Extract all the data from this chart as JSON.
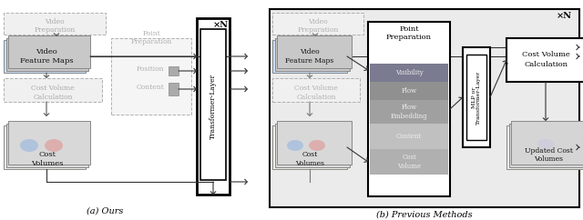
{
  "fig_width": 6.4,
  "fig_height": 2.42,
  "dpi": 100,
  "bg_color": "#ffffff",
  "title_a": "(a) Ours",
  "title_b": "(b) Previous Methods",
  "xN": "×N"
}
